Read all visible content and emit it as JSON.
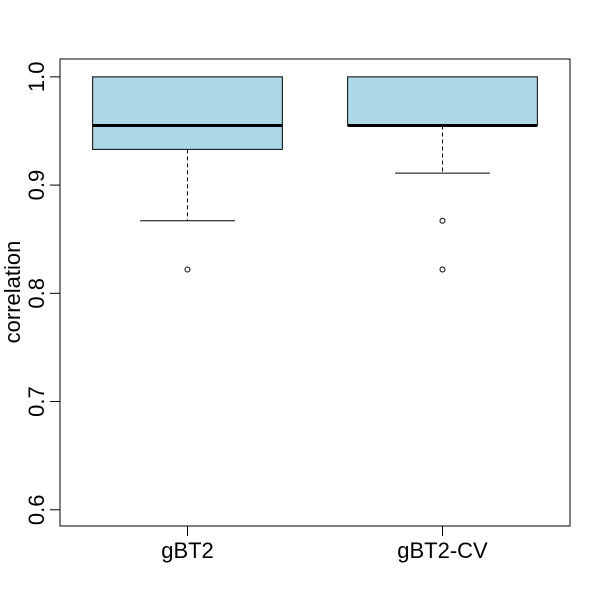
{
  "chart_data": {
    "type": "boxplot",
    "title": "",
    "xlabel": "",
    "ylabel": "correlation",
    "ylim": [
      0.585,
      1.0165
    ],
    "yticks": [
      0.6,
      0.7,
      0.8,
      0.9,
      1.0
    ],
    "ytick_labels": [
      "0.6",
      "0.7",
      "0.8",
      "0.9",
      "1.0"
    ],
    "categories": [
      "gBT2",
      "gBT2-CV"
    ],
    "box_fill": "#ADD8E6",
    "line_color": "#000000",
    "grid": false,
    "boxes": [
      {
        "category": "gBT2",
        "lower_whisker": 0.867,
        "q1": 0.933,
        "median": 0.955,
        "q3": 1.0,
        "upper_whisker": 1.0,
        "outliers": [
          0.822
        ]
      },
      {
        "category": "gBT2-CV",
        "lower_whisker": 0.911,
        "q1": 0.955,
        "median": 0.955,
        "q3": 1.0,
        "upper_whisker": 1.0,
        "outliers": [
          0.867,
          0.822
        ]
      }
    ]
  }
}
